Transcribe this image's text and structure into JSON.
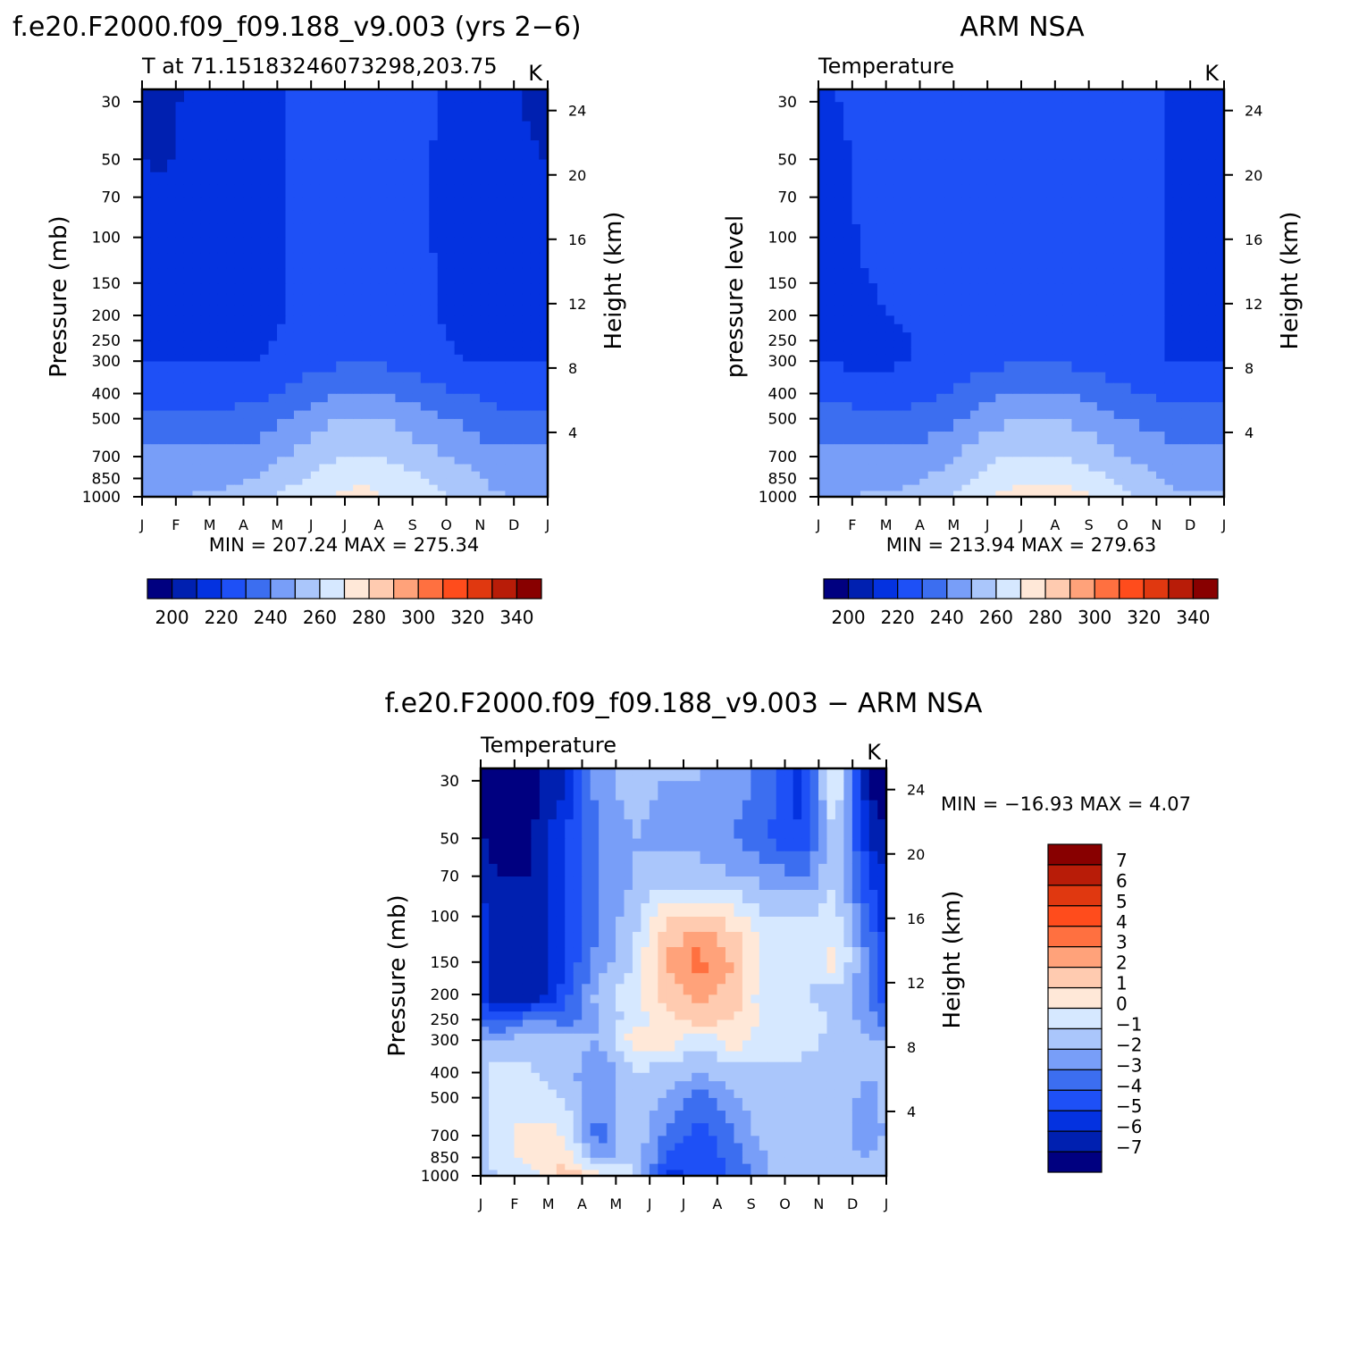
{
  "figure": {
    "top_left_title": "f.e20.F2000.f09_f09.188_v9.003 (yrs 2−6)",
    "top_right_title": "ARM NSA",
    "bottom_title": "f.e20.F2000.f09_f09.188_v9.003 − ARM NSA"
  },
  "colors": {
    "abs_palette": [
      "#000080",
      "#0020b0",
      "#0432e0",
      "#1e50f6",
      "#3c6ef0",
      "#789ef8",
      "#aac6fb",
      "#d6e8ff",
      "#ffe8d8",
      "#ffcbb0",
      "#ffa27a",
      "#ff7040",
      "#ff4c1c",
      "#e03810",
      "#b81c08",
      "#880000"
    ],
    "diff_palette": [
      "#000080",
      "#0020b0",
      "#0432e0",
      "#1e50f6",
      "#3c6ef0",
      "#789ef8",
      "#aac6fb",
      "#d6e8ff",
      "#ffe8d8",
      "#ffcbb0",
      "#ffa27a",
      "#ff7040",
      "#ff4c1c",
      "#e03810",
      "#b81c08",
      "#880000"
    ]
  },
  "chart_data": [
    {
      "type": "heatmap",
      "title": "T at 71.15183246073298,203.75",
      "units": "K",
      "xlabel": "",
      "ylabel": "Pressure (mb)",
      "ylabel_right": "Height (km)",
      "x_ticklabels": [
        "J",
        "F",
        "M",
        "A",
        "M",
        "J",
        "J",
        "A",
        "S",
        "O",
        "N",
        "D",
        "J"
      ],
      "y_ticks": [
        1000,
        850,
        700,
        500,
        400,
        300,
        250,
        200,
        150,
        100,
        70,
        50,
        30
      ],
      "y_ticks_right": [
        4,
        8,
        12,
        16,
        20,
        24
      ],
      "stats": "MIN = 207.24 MAX = 275.34",
      "colorbar_labels": [
        "200",
        "220",
        "240",
        "260",
        "280",
        "300",
        "320",
        "340"
      ],
      "levels": [
        200,
        210,
        220,
        230,
        240,
        250,
        260,
        270,
        280,
        290,
        300,
        310,
        320,
        330,
        340
      ],
      "data": {
        "months": [
          "Jan",
          "Feb",
          "Mar",
          "Apr",
          "May",
          "Jun",
          "Jul",
          "Aug",
          "Sep",
          "Oct",
          "Nov",
          "Dec"
        ],
        "pressure": [
          1000,
          850,
          700,
          500,
          400,
          300,
          250,
          200,
          150,
          100,
          70,
          50,
          30
        ],
        "values": [
          [
            249,
            251,
            252,
            258,
            264,
            270,
            273,
            269,
            263,
            257,
            251,
            250
          ],
          [
            246,
            246,
            247,
            251,
            258,
            264,
            268,
            265,
            259,
            254,
            247,
            246
          ],
          [
            242,
            242,
            242,
            245,
            252,
            258,
            261,
            258,
            253,
            248,
            242,
            242
          ],
          [
            233,
            233,
            233,
            235,
            241,
            248,
            251,
            248,
            242,
            238,
            233,
            233
          ],
          [
            226,
            226,
            226,
            227,
            233,
            239,
            241,
            239,
            234,
            230,
            227,
            226
          ],
          [
            219,
            219,
            219,
            220,
            224,
            228,
            229,
            228,
            224,
            220,
            219,
            219
          ],
          [
            217,
            217,
            218,
            219,
            221,
            222,
            223,
            222,
            221,
            219,
            218,
            217
          ],
          [
            216,
            216,
            217,
            218,
            221,
            222,
            223,
            222,
            221,
            218,
            216,
            216
          ],
          [
            215,
            216,
            217,
            218,
            221,
            222,
            223,
            222,
            221,
            218,
            216,
            215
          ],
          [
            213,
            214,
            216,
            218,
            221,
            222,
            223,
            222,
            220,
            217,
            215,
            213
          ],
          [
            211,
            213,
            216,
            218,
            221,
            222,
            223,
            222,
            220,
            218,
            215,
            212
          ],
          [
            209,
            212,
            216,
            218,
            221,
            222,
            223,
            222,
            220,
            218,
            214,
            211
          ],
          [
            208,
            211,
            216,
            218,
            221,
            222,
            223,
            222,
            221,
            218,
            213,
            209
          ]
        ]
      }
    },
    {
      "type": "heatmap",
      "title": "Temperature",
      "units": "K",
      "xlabel": "",
      "ylabel": "pressure level",
      "ylabel_right": "Height (km)",
      "x_ticklabels": [
        "J",
        "F",
        "M",
        "A",
        "M",
        "J",
        "J",
        "A",
        "S",
        "O",
        "N",
        "D",
        "J"
      ],
      "y_ticks": [
        1000,
        850,
        700,
        500,
        400,
        300,
        250,
        200,
        150,
        100,
        70,
        50,
        30
      ],
      "y_ticks_right": [
        4,
        8,
        12,
        16,
        20,
        24
      ],
      "stats": "MIN = 213.94 MAX = 279.63",
      "colorbar_labels": [
        "200",
        "220",
        "240",
        "260",
        "280",
        "300",
        "320",
        "340"
      ],
      "levels": [
        200,
        210,
        220,
        230,
        240,
        250,
        260,
        270,
        280,
        290,
        300,
        310,
        320,
        330,
        340
      ],
      "data": {
        "months": [
          "Jan",
          "Feb",
          "Mar",
          "Apr",
          "May",
          "Jun",
          "Jul",
          "Aug",
          "Sep",
          "Oct",
          "Nov",
          "Dec"
        ],
        "pressure": [
          1000,
          850,
          700,
          500,
          400,
          300,
          250,
          200,
          150,
          100,
          70,
          50,
          30
        ],
        "values": [
          [
            250,
            251,
            252,
            257,
            265,
            273,
            277,
            274,
            268,
            259,
            252,
            251
          ],
          [
            247,
            246,
            247,
            252,
            259,
            266,
            269,
            266,
            261,
            254,
            248,
            247
          ],
          [
            243,
            242,
            242,
            246,
            253,
            260,
            262,
            259,
            254,
            248,
            243,
            243
          ],
          [
            234,
            233,
            233,
            236,
            242,
            249,
            251,
            248,
            243,
            238,
            234,
            234
          ],
          [
            227,
            226,
            226,
            228,
            234,
            240,
            242,
            240,
            235,
            230,
            227,
            227
          ],
          [
            219,
            218,
            219,
            222,
            226,
            228,
            229,
            228,
            226,
            222,
            219,
            219
          ],
          [
            217,
            216,
            219,
            222,
            224,
            226,
            227,
            226,
            225,
            222,
            219,
            218
          ],
          [
            217,
            219,
            221,
            223,
            225,
            226,
            227,
            226,
            225,
            223,
            219,
            218
          ],
          [
            218,
            220,
            221,
            223,
            225,
            226,
            227,
            226,
            225,
            224,
            219,
            218
          ],
          [
            218,
            221,
            222,
            223,
            225,
            226,
            227,
            226,
            225,
            223,
            219,
            218
          ],
          [
            219,
            221,
            222,
            224,
            225,
            226,
            227,
            226,
            225,
            222,
            219,
            219
          ],
          [
            219,
            221,
            222,
            224,
            225,
            226,
            227,
            226,
            225,
            222,
            219,
            219
          ],
          [
            220,
            221,
            222,
            224,
            225,
            226,
            228,
            226,
            224,
            222,
            219,
            219
          ]
        ]
      }
    },
    {
      "type": "heatmap",
      "title": "Temperature",
      "units": "K",
      "xlabel": "",
      "ylabel": "Pressure (mb)",
      "ylabel_right": "Height (km)",
      "x_ticklabels": [
        "J",
        "F",
        "M",
        "A",
        "M",
        "J",
        "J",
        "A",
        "S",
        "O",
        "N",
        "D",
        "J"
      ],
      "y_ticks": [
        1000,
        850,
        700,
        500,
        400,
        300,
        250,
        200,
        150,
        100,
        70,
        50,
        30
      ],
      "y_ticks_right": [
        4,
        8,
        12,
        16,
        20,
        24
      ],
      "stats": "MIN = −16.93 MAX =    4.07",
      "colorbar_labels": [
        "7",
        "6",
        "5",
        "4",
        "3",
        "2",
        "1",
        "0",
        "−1",
        "−2",
        "−3",
        "−4",
        "−5",
        "−6",
        "−7"
      ],
      "levels": [
        -7,
        -6,
        -5,
        -4,
        -3,
        -2,
        -1,
        0,
        1,
        2,
        3,
        4,
        5,
        6,
        7
      ],
      "data": {
        "months": [
          "Jan",
          "Feb",
          "Mar",
          "Apr",
          "May",
          "Jun",
          "Jul",
          "Aug",
          "Sep",
          "Oct",
          "Nov",
          "Dec"
        ],
        "pressure": [
          1000,
          850,
          700,
          500,
          400,
          300,
          250,
          200,
          150,
          100,
          70,
          50,
          30
        ],
        "values": [
          [
            -1.0,
            -0.5,
            2.0,
            0.5,
            -0.5,
            -5.5,
            -4.5,
            -4.0,
            -2.0,
            -1.5,
            -1.0,
            -2.0
          ],
          [
            -0.5,
            0.5,
            0.5,
            -2.5,
            -1.0,
            -4.0,
            -5.0,
            -3.5,
            -2.0,
            -1.5,
            -1.5,
            -2.0
          ],
          [
            -0.5,
            0.5,
            0.0,
            -3.5,
            -1.0,
            -3.5,
            -4.5,
            -3.0,
            -1.5,
            -1.0,
            -1.5,
            -3.0
          ],
          [
            -0.5,
            -0.5,
            -1.0,
            -3.0,
            -1.0,
            -2.0,
            -3.5,
            -2.0,
            -1.0,
            -1.5,
            -1.0,
            -2.5
          ],
          [
            -0.5,
            -1.0,
            -1.5,
            -3.0,
            -1.0,
            -1.5,
            -2.0,
            -1.5,
            -1.5,
            -1.5,
            -1.0,
            -2.0
          ],
          [
            -2.0,
            -1.0,
            -1.5,
            -2.0,
            0.5,
            0.5,
            -1.0,
            0.5,
            -0.5,
            -0.5,
            -1.5,
            -2.0
          ],
          [
            -4.5,
            -3.0,
            -3.5,
            -2.0,
            -0.5,
            0.5,
            1.5,
            1.0,
            -0.5,
            -0.5,
            -1.0,
            -2.5
          ],
          [
            -7.0,
            -7.0,
            -4.5,
            -1.5,
            -0.5,
            1.5,
            2.5,
            1.5,
            -1.0,
            -1.0,
            -1.5,
            -3.0
          ],
          [
            -7.0,
            -7.0,
            -5.0,
            -2.5,
            -1.0,
            2.0,
            3.5,
            2.0,
            -0.5,
            -0.5,
            0.5,
            -3.0
          ],
          [
            -7.0,
            -7.0,
            -5.0,
            -3.0,
            -1.5,
            1.0,
            1.5,
            0.5,
            -1.0,
            -1.0,
            -0.5,
            -4.0
          ],
          [
            -7.0,
            -7.0,
            -5.0,
            -3.0,
            -2.0,
            -1.5,
            -1.5,
            -2.0,
            -2.5,
            -3.0,
            -1.0,
            -5.0
          ],
          [
            -7.5,
            -7.0,
            -5.0,
            -3.0,
            -2.0,
            -2.5,
            -2.5,
            -3.0,
            -4.0,
            -5.0,
            -1.0,
            -6.0
          ],
          [
            -8.0,
            -7.5,
            -6.0,
            -2.5,
            -1.5,
            -2.0,
            -2.0,
            -2.5,
            -3.5,
            -5.5,
            0.5,
            -7.5
          ]
        ]
      }
    }
  ]
}
